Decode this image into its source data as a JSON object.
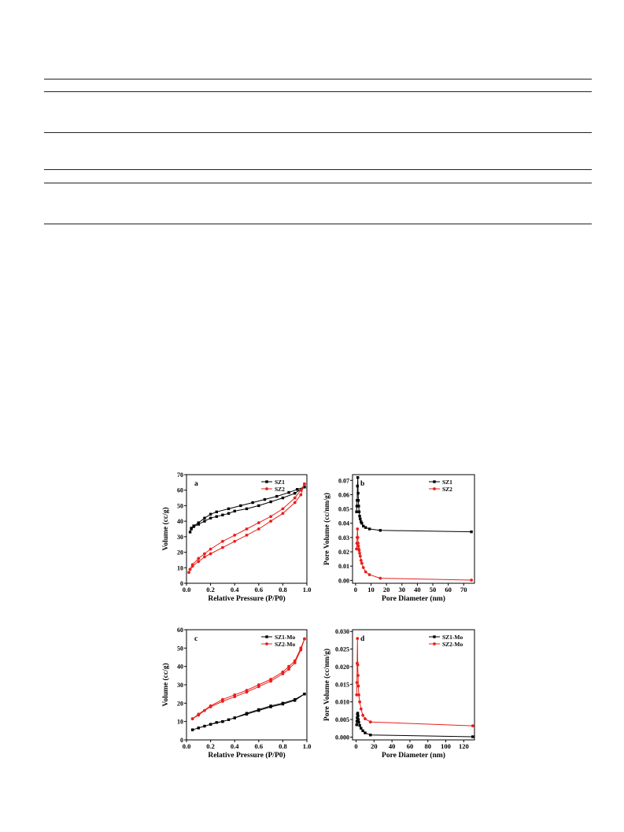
{
  "chart_data": [
    {
      "type": "line",
      "panel_label": "a",
      "xlabel": "Relative Pressure (P/P0)",
      "ylabel": "Volume (cc/g)",
      "xlim": [
        0.0,
        1.0
      ],
      "ylim": [
        0,
        70
      ],
      "xticks": [
        0.0,
        0.2,
        0.4,
        0.6,
        0.8,
        1.0
      ],
      "xtick_labels": [
        "0.0",
        "0.2",
        "0.4",
        "0.6",
        "0.8",
        "1.0"
      ],
      "yticks": [
        0,
        10,
        20,
        30,
        40,
        50,
        60,
        70
      ],
      "ytick_labels": [
        "0",
        "10",
        "20",
        "30",
        "40",
        "50",
        "60",
        "70"
      ],
      "legend_position": "top-right",
      "series": [
        {
          "name": "SZ1",
          "color": "#000000",
          "marker": "square",
          "x": [
            0.03,
            0.04,
            0.06,
            0.1,
            0.15,
            0.2,
            0.25,
            0.3,
            0.35,
            0.4,
            0.5,
            0.6,
            0.7,
            0.8,
            0.9,
            0.98,
            0.98,
            0.92,
            0.85,
            0.75,
            0.65,
            0.55,
            0.45,
            0.35,
            0.25,
            0.2,
            0.15,
            0.1,
            0.06,
            0.04
          ],
          "y": [
            33,
            35,
            36.5,
            38,
            40,
            42,
            43,
            44,
            45,
            46.5,
            48,
            50,
            52.5,
            55,
            58,
            62,
            62,
            60.5,
            58.5,
            56,
            54,
            52,
            50,
            48,
            46,
            44.5,
            42,
            39,
            37,
            35.5
          ]
        },
        {
          "name": "SZ2",
          "color": "#e8201c",
          "marker": "circle",
          "x": [
            0.02,
            0.03,
            0.05,
            0.1,
            0.15,
            0.2,
            0.3,
            0.4,
            0.5,
            0.6,
            0.7,
            0.8,
            0.9,
            0.95,
            0.98,
            0.98,
            0.95,
            0.9,
            0.8,
            0.7,
            0.6,
            0.5,
            0.4,
            0.3,
            0.2,
            0.15,
            0.1,
            0.05,
            0.03
          ],
          "y": [
            7,
            9,
            11,
            14,
            17,
            19,
            23,
            27,
            31,
            35,
            40,
            45,
            52,
            57,
            64,
            64,
            60,
            55,
            48,
            43,
            39,
            35,
            31,
            27,
            22,
            19,
            16,
            12,
            9
          ]
        }
      ]
    },
    {
      "type": "line",
      "panel_label": "b",
      "xlabel": "Pore Diameter (nm)",
      "ylabel": "Pore Volume (cc/nm/g)",
      "xlim": [
        -2,
        77
      ],
      "ylim": [
        -0.002,
        0.074
      ],
      "xticks": [
        0,
        10,
        20,
        30,
        40,
        50,
        60,
        70
      ],
      "xtick_labels": [
        "0",
        "10",
        "20",
        "30",
        "40",
        "50",
        "60",
        "70"
      ],
      "yticks": [
        0.0,
        0.01,
        0.02,
        0.03,
        0.04,
        0.05,
        0.06,
        0.07
      ],
      "ytick_labels": [
        "0.00",
        "0.01",
        "0.02",
        "0.03",
        "0.04",
        "0.05",
        "0.06",
        "0.07"
      ],
      "legend_position": "top-right",
      "series": [
        {
          "name": "SZ1",
          "color": "#000000",
          "marker": "square",
          "x": [
            0.6,
            0.8,
            1.0,
            1.2,
            1.4,
            1.6,
            1.8,
            2.0,
            2.3,
            2.6,
            3.0,
            3.5,
            4.0,
            5.0,
            6.5,
            9,
            16,
            75
          ],
          "y": [
            0.048,
            0.052,
            0.056,
            0.066,
            0.072,
            0.061,
            0.056,
            0.052,
            0.048,
            0.045,
            0.043,
            0.041,
            0.04,
            0.038,
            0.037,
            0.036,
            0.035,
            0.034
          ]
        },
        {
          "name": "SZ2",
          "color": "#e8201c",
          "marker": "circle",
          "x": [
            0.6,
            0.8,
            1.0,
            1.2,
            1.4,
            1.6,
            1.8,
            2.0,
            2.3,
            2.6,
            3.0,
            3.5,
            4.0,
            5.0,
            6.5,
            9,
            16,
            75
          ],
          "y": [
            0.022,
            0.026,
            0.03,
            0.036,
            0.03,
            0.026,
            0.024,
            0.022,
            0.021,
            0.019,
            0.017,
            0.014,
            0.012,
            0.009,
            0.006,
            0.004,
            0.0015,
            0.0002
          ]
        }
      ]
    },
    {
      "type": "line",
      "panel_label": "c",
      "xlabel": "Relative Pressure (P/P0)",
      "ylabel": "Volume (cc/g)",
      "xlim": [
        0.0,
        1.0
      ],
      "ylim": [
        0,
        60
      ],
      "xticks": [
        0.0,
        0.2,
        0.4,
        0.6,
        0.8,
        1.0
      ],
      "xtick_labels": [
        "0.0",
        "0.2",
        "0.4",
        "0.6",
        "0.8",
        "1.0"
      ],
      "yticks": [
        0,
        10,
        20,
        30,
        40,
        50,
        60
      ],
      "ytick_labels": [
        "0",
        "10",
        "20",
        "30",
        "40",
        "50",
        "60"
      ],
      "legend_position": "top-right",
      "series": [
        {
          "name": "SZ1-Mo",
          "color": "#000000",
          "marker": "square",
          "x": [
            0.05,
            0.1,
            0.15,
            0.2,
            0.25,
            0.3,
            0.35,
            0.4,
            0.5,
            0.6,
            0.7,
            0.8,
            0.9,
            0.98,
            0.98,
            0.9,
            0.8,
            0.7,
            0.6,
            0.5,
            0.4,
            0.3,
            0.2,
            0.1,
            0.05
          ],
          "y": [
            5.5,
            6.5,
            7.5,
            8.5,
            9.5,
            10,
            11,
            12,
            14,
            16,
            18,
            19.5,
            21.5,
            25,
            25,
            22,
            20,
            18.5,
            16.5,
            14.5,
            12,
            10,
            8.5,
            6.5,
            5.5
          ]
        },
        {
          "name": "SZ2-Mo",
          "color": "#e8201c",
          "marker": "circle",
          "x": [
            0.05,
            0.1,
            0.15,
            0.2,
            0.3,
            0.4,
            0.5,
            0.6,
            0.7,
            0.8,
            0.85,
            0.9,
            0.95,
            0.98,
            0.98,
            0.95,
            0.9,
            0.85,
            0.8,
            0.7,
            0.6,
            0.5,
            0.4,
            0.3,
            0.2,
            0.1,
            0.05
          ],
          "y": [
            11.5,
            13.5,
            16,
            18,
            21,
            23.5,
            26,
            29,
            32,
            36,
            38.5,
            42,
            49,
            55,
            55,
            50,
            43,
            40,
            37,
            33,
            30,
            27,
            24.5,
            22,
            18.5,
            14,
            11.5
          ]
        }
      ]
    },
    {
      "type": "line",
      "panel_label": "d",
      "xlabel": "Pore Diameter (nm)",
      "ylabel": "Pore Volume (cc/nm/g)",
      "xlim": [
        -4,
        132
      ],
      "ylim": [
        -0.0008,
        0.0305
      ],
      "xticks": [
        0,
        20,
        40,
        60,
        80,
        100,
        120
      ],
      "xtick_labels": [
        "0",
        "20",
        "40",
        "60",
        "80",
        "100",
        "120"
      ],
      "yticks": [
        0.0,
        0.005,
        0.01,
        0.015,
        0.02,
        0.025,
        0.03
      ],
      "ytick_labels": [
        "0.000",
        "0.005",
        "0.010",
        "0.015",
        "0.020",
        "0.025",
        "0.030"
      ],
      "legend_position": "top-right",
      "series": [
        {
          "name": "SZ1-Mo",
          "color": "#000000",
          "marker": "square",
          "x": [
            0.6,
            0.9,
            1.2,
            1.5,
            1.8,
            2.1,
            2.5,
            3.0,
            4.0,
            5.5,
            7.5,
            10,
            16,
            130
          ],
          "y": [
            0.0035,
            0.0045,
            0.0055,
            0.0065,
            0.0068,
            0.006,
            0.005,
            0.0042,
            0.0033,
            0.0025,
            0.0018,
            0.0012,
            0.0006,
            0.0001
          ]
        },
        {
          "name": "SZ2-Mo",
          "color": "#e8201c",
          "marker": "circle",
          "x": [
            0.6,
            0.9,
            1.2,
            1.5,
            1.8,
            2.1,
            2.5,
            3.0,
            4.0,
            5.5,
            7.5,
            10,
            16,
            130
          ],
          "y": [
            0.012,
            0.0155,
            0.021,
            0.028,
            0.0205,
            0.0175,
            0.0145,
            0.012,
            0.01,
            0.008,
            0.0062,
            0.0052,
            0.0043,
            0.0032
          ]
        }
      ]
    }
  ]
}
